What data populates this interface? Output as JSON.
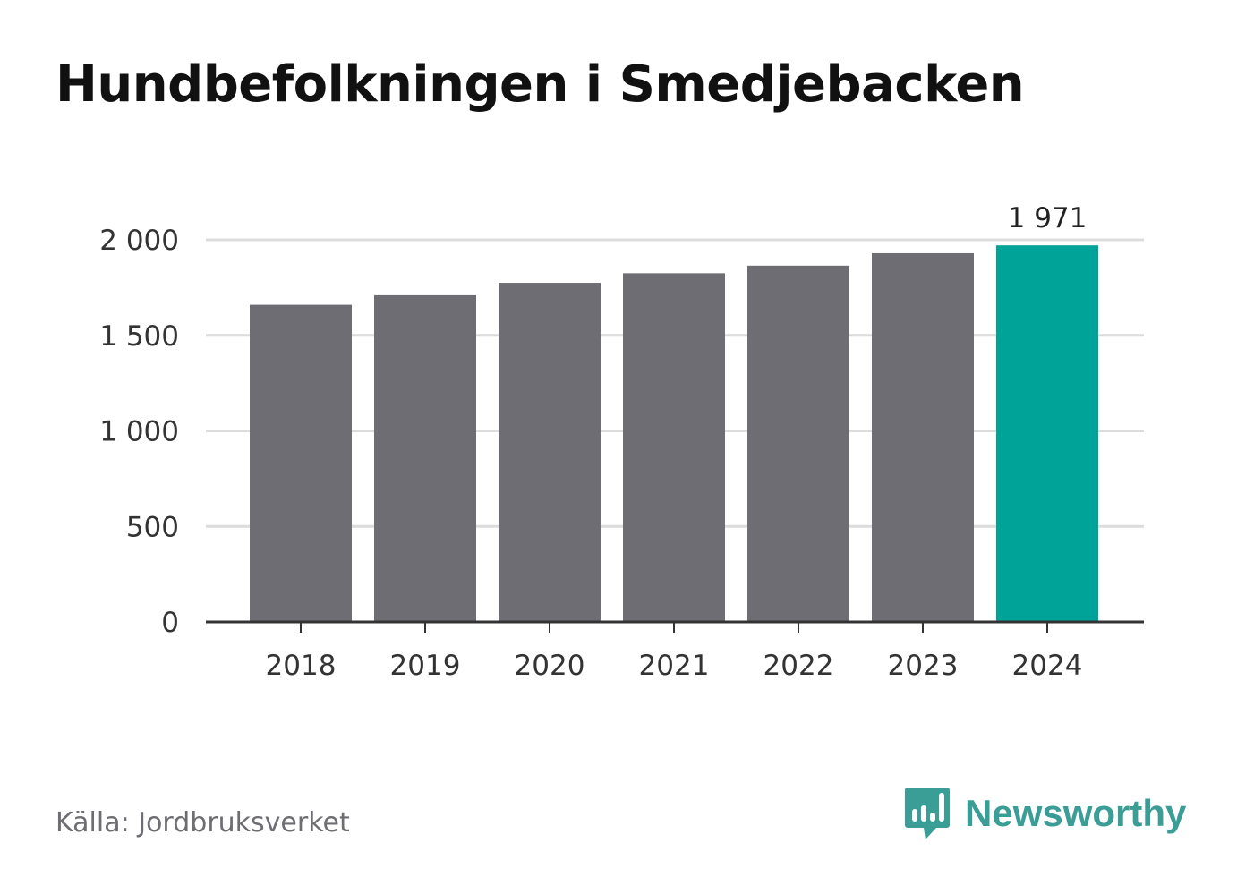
{
  "title": "Hundbefolkningen i Smedjebacken",
  "source": "Källa: Jordbruksverket",
  "brand": {
    "name": "Newsworthy",
    "icon": "newsworthy-logo-icon"
  },
  "colors": {
    "bar": "#6e6d73",
    "highlight": "#00a398",
    "brand": "#3a9d96"
  },
  "chart_data": {
    "type": "bar",
    "categories": [
      "2018",
      "2019",
      "2020",
      "2021",
      "2022",
      "2023",
      "2024"
    ],
    "values": [
      1660,
      1710,
      1775,
      1825,
      1865,
      1930,
      1971
    ],
    "highlight_index": 6,
    "data_labels": [
      "",
      "",
      "",
      "",
      "",
      "",
      "1 971"
    ],
    "yticks": [
      0,
      500,
      1000,
      1500,
      2000
    ],
    "ytick_labels": [
      "0",
      "500",
      "1 000",
      "1 500",
      "2 000"
    ],
    "ylim": [
      0,
      2000
    ],
    "grid": true,
    "xlabel": "",
    "ylabel": ""
  }
}
